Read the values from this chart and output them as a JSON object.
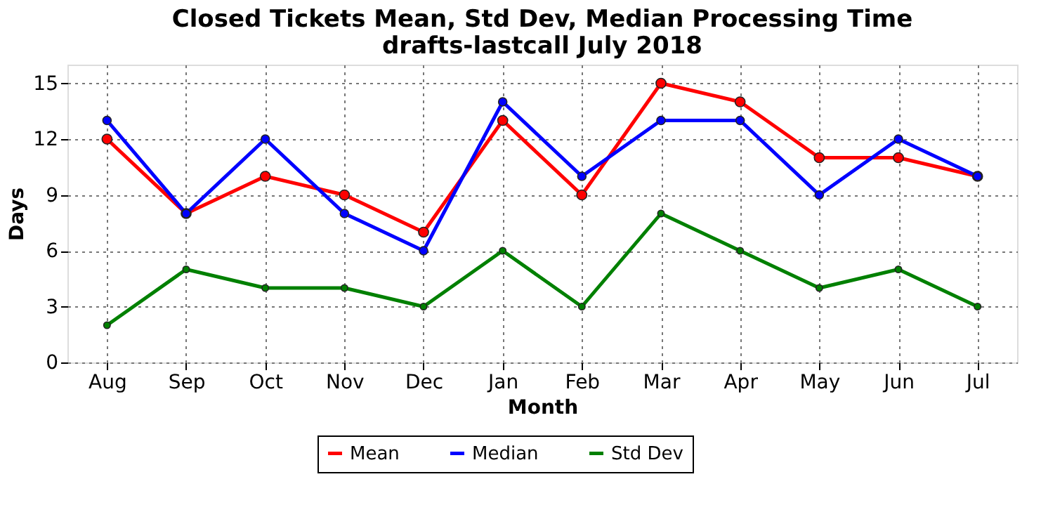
{
  "chart_data": {
    "type": "line",
    "title": "Closed Tickets Mean, Std Dev, Median Processing Time",
    "subtitle": "drafts-lastcall July 2018",
    "xlabel": "Month",
    "ylabel": "Days",
    "categories": [
      "Aug",
      "Sep",
      "Oct",
      "Nov",
      "Dec",
      "Jan",
      "Feb",
      "Mar",
      "Apr",
      "May",
      "Jun",
      "Jul"
    ],
    "series": [
      {
        "name": "Mean",
        "color": "#ff0000",
        "values": [
          12,
          8,
          10,
          9,
          7,
          13,
          9,
          15,
          14,
          11,
          11,
          10
        ]
      },
      {
        "name": "Median",
        "color": "#0000ff",
        "values": [
          13,
          8,
          12,
          8,
          6,
          14,
          10,
          13,
          13,
          9,
          12,
          10
        ]
      },
      {
        "name": "Std Dev",
        "color": "#008000",
        "values": [
          2,
          5,
          4,
          4,
          3,
          6,
          3,
          8,
          6,
          4,
          5,
          3
        ]
      }
    ],
    "ylim": [
      0,
      16
    ],
    "yticks": [
      0,
      3,
      6,
      9,
      12,
      15
    ],
    "grid": true,
    "legend": "bottom",
    "marker": "circle",
    "line_style": "solid"
  }
}
